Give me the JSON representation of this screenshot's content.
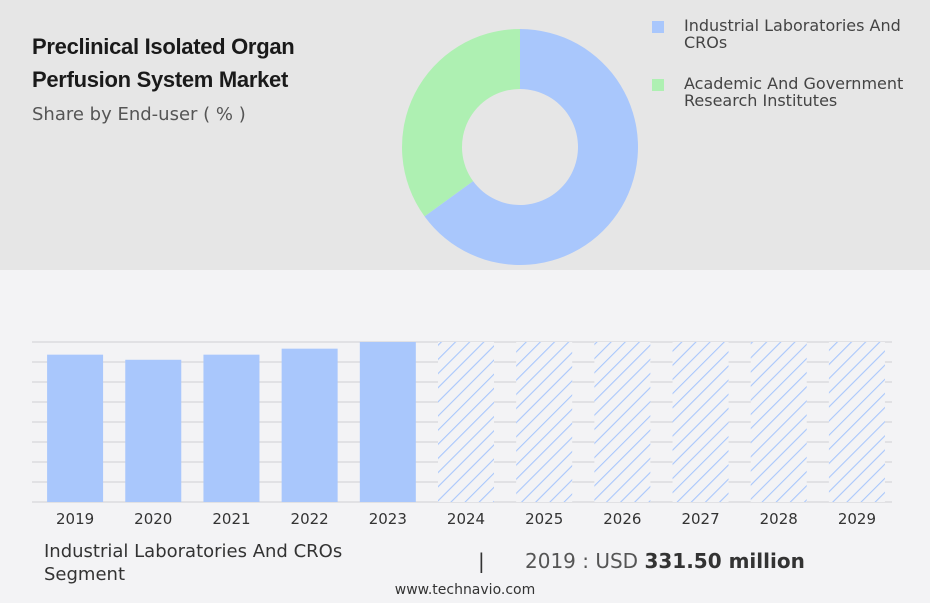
{
  "header": {
    "title": "Preclinical Isolated Organ Perfusion System Market",
    "subtitle": "Share by End-user ( % )"
  },
  "legend": [
    {
      "label": "Industrial Laboratories And CROs",
      "color": "#a9c7fc"
    },
    {
      "label": "Academic And Government Research Institutes",
      "color": "#aef0b2"
    }
  ],
  "chart_data": [
    {
      "type": "pie",
      "categories": [
        "Industrial Laboratories And CROs",
        "Academic And Government Research Institutes"
      ],
      "values": [
        65,
        35
      ],
      "colors": [
        "#a9c7fc",
        "#aef0b2"
      ]
    },
    {
      "type": "bar",
      "categories": [
        "2019",
        "2020",
        "2021",
        "2022",
        "2023",
        "2024",
        "2025",
        "2026",
        "2027",
        "2028",
        "2029"
      ],
      "values": [
        331.5,
        320,
        331.5,
        345,
        360,
        null,
        null,
        null,
        null,
        null,
        null
      ],
      "forecast": [
        "2024",
        "2025",
        "2026",
        "2027",
        "2028",
        "2029"
      ],
      "ylim": [
        0,
        360
      ],
      "grid": true,
      "color": "#a9c7fc"
    }
  ],
  "footer": {
    "segment": "Industrial Laboratories And CROs Segment",
    "separator": "|",
    "year_label": "2019 : USD",
    "value": "331.50 million",
    "site": "www.technavio.com"
  }
}
